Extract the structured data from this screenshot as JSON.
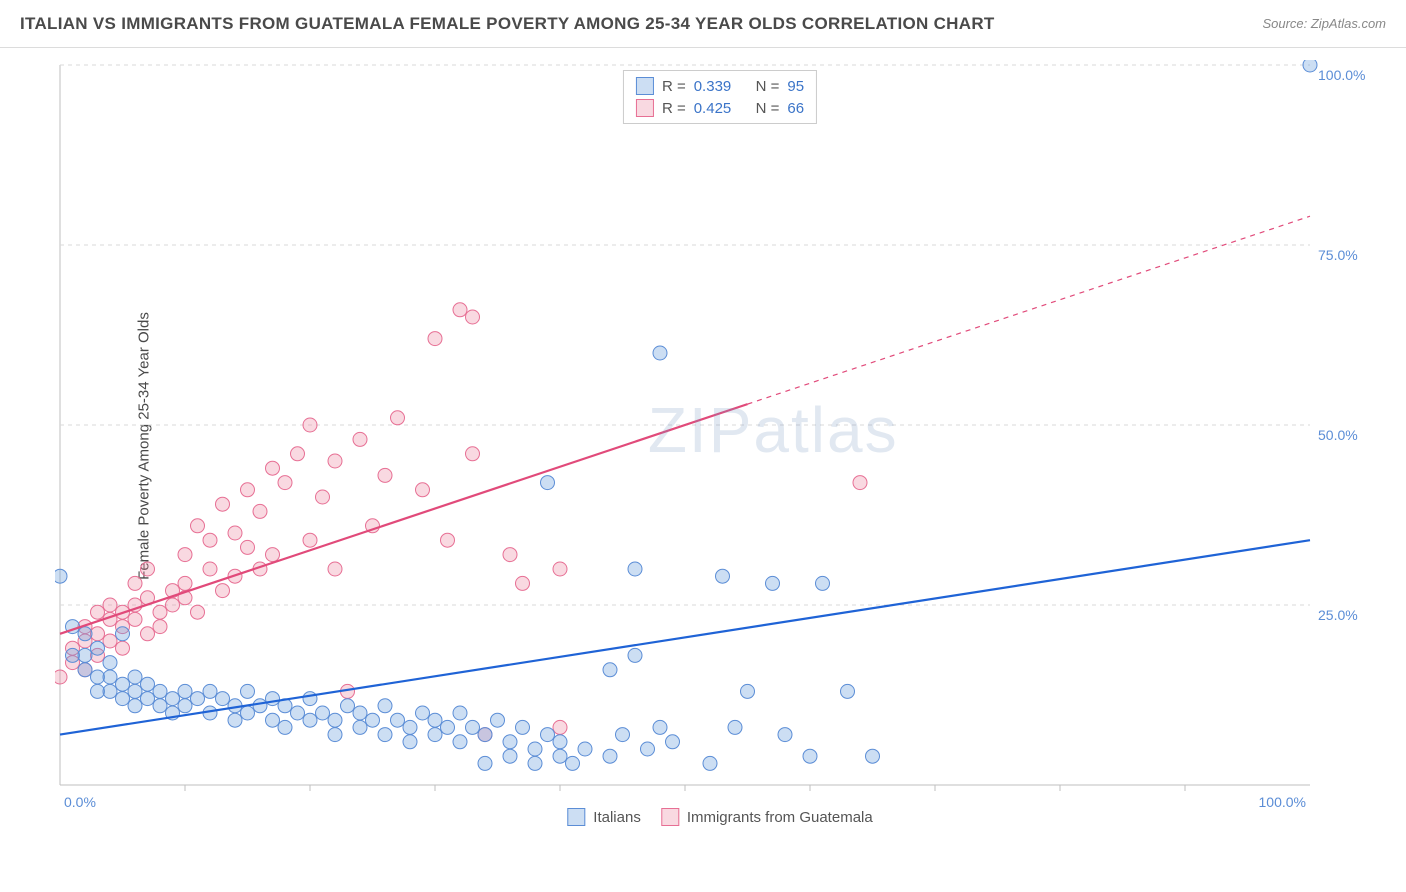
{
  "title": "ITALIAN VS IMMIGRANTS FROM GUATEMALA FEMALE POVERTY AMONG 25-34 YEAR OLDS CORRELATION CHART",
  "source": "Source: ZipAtlas.com",
  "ylabel": "Female Poverty Among 25-34 Year Olds",
  "watermark_bold": "ZIP",
  "watermark_thin": "atlas",
  "chart": {
    "type": "scatter-correlation",
    "xlim": [
      0,
      100
    ],
    "ylim": [
      0,
      100
    ],
    "x_ticks": [
      0,
      100
    ],
    "y_ticks": [
      25,
      50,
      75,
      100
    ],
    "x_tick_labels": [
      "0.0%",
      "100.0%"
    ],
    "y_tick_labels": [
      "25.0%",
      "50.0%",
      "75.0%",
      "100.0%"
    ],
    "grid_color": "#d8d8d8",
    "grid_dash": "4,4",
    "axis_line_color": "#bfbfbf",
    "tick_label_color": "#5b8dd6",
    "background_color": "#ffffff"
  },
  "series": {
    "italians": {
      "label": "Italians",
      "R": "0.339",
      "N": "95",
      "point_fill": "rgba(108,160,220,0.35)",
      "point_stroke": "#5b8dd6",
      "trend_stroke": "#1f63d6",
      "trend_width": 2.2,
      "trend_y_at_x0": 7,
      "trend_y_at_x100": 34,
      "points": [
        [
          0,
          29
        ],
        [
          1,
          22
        ],
        [
          1,
          18
        ],
        [
          2,
          21
        ],
        [
          2,
          18
        ],
        [
          2,
          16
        ],
        [
          3,
          19
        ],
        [
          3,
          15
        ],
        [
          3,
          13
        ],
        [
          4,
          17
        ],
        [
          4,
          15
        ],
        [
          4,
          13
        ],
        [
          5,
          21
        ],
        [
          5,
          14
        ],
        [
          5,
          12
        ],
        [
          6,
          15
        ],
        [
          6,
          13
        ],
        [
          6,
          11
        ],
        [
          7,
          14
        ],
        [
          7,
          12
        ],
        [
          8,
          13
        ],
        [
          8,
          11
        ],
        [
          9,
          12
        ],
        [
          9,
          10
        ],
        [
          10,
          13
        ],
        [
          10,
          11
        ],
        [
          11,
          12
        ],
        [
          12,
          13
        ],
        [
          12,
          10
        ],
        [
          13,
          12
        ],
        [
          14,
          11
        ],
        [
          14,
          9
        ],
        [
          15,
          13
        ],
        [
          15,
          10
        ],
        [
          16,
          11
        ],
        [
          17,
          12
        ],
        [
          17,
          9
        ],
        [
          18,
          11
        ],
        [
          18,
          8
        ],
        [
          19,
          10
        ],
        [
          20,
          12
        ],
        [
          20,
          9
        ],
        [
          21,
          10
        ],
        [
          22,
          9
        ],
        [
          22,
          7
        ],
        [
          23,
          11
        ],
        [
          24,
          10
        ],
        [
          24,
          8
        ],
        [
          25,
          9
        ],
        [
          26,
          11
        ],
        [
          26,
          7
        ],
        [
          27,
          9
        ],
        [
          28,
          8
        ],
        [
          28,
          6
        ],
        [
          29,
          10
        ],
        [
          30,
          9
        ],
        [
          30,
          7
        ],
        [
          31,
          8
        ],
        [
          32,
          10
        ],
        [
          32,
          6
        ],
        [
          33,
          8
        ],
        [
          34,
          7
        ],
        [
          34,
          3
        ],
        [
          35,
          9
        ],
        [
          36,
          6
        ],
        [
          36,
          4
        ],
        [
          37,
          8
        ],
        [
          38,
          5
        ],
        [
          38,
          3
        ],
        [
          39,
          7
        ],
        [
          40,
          6
        ],
        [
          40,
          4
        ],
        [
          41,
          3
        ],
        [
          42,
          5
        ],
        [
          44,
          4
        ],
        [
          44,
          16
        ],
        [
          45,
          7
        ],
        [
          46,
          30
        ],
        [
          47,
          5
        ],
        [
          48,
          8
        ],
        [
          49,
          6
        ],
        [
          52,
          3
        ],
        [
          53,
          29
        ],
        [
          54,
          8
        ],
        [
          55,
          13
        ],
        [
          57,
          28
        ],
        [
          58,
          7
        ],
        [
          60,
          4
        ],
        [
          61,
          28
        ],
        [
          63,
          13
        ],
        [
          65,
          4
        ],
        [
          48,
          60
        ],
        [
          39,
          42
        ],
        [
          46,
          18
        ],
        [
          100,
          100
        ]
      ]
    },
    "guatemala": {
      "label": "Immigrants from Guatemala",
      "R": "0.425",
      "N": "66",
      "point_fill": "rgba(235,130,155,0.30)",
      "point_stroke": "#e76f94",
      "trend_stroke": "#e14a7a",
      "trend_width": 2.2,
      "trend_y_at_x0": 21,
      "trend_y_at_x100": 79,
      "trend_dash_after_x": 55,
      "points": [
        [
          0,
          15
        ],
        [
          1,
          17
        ],
        [
          1,
          19
        ],
        [
          2,
          16
        ],
        [
          2,
          20
        ],
        [
          2,
          22
        ],
        [
          3,
          18
        ],
        [
          3,
          21
        ],
        [
          3,
          24
        ],
        [
          4,
          20
        ],
        [
          4,
          23
        ],
        [
          4,
          25
        ],
        [
          5,
          22
        ],
        [
          5,
          24
        ],
        [
          5,
          19
        ],
        [
          6,
          23
        ],
        [
          6,
          25
        ],
        [
          6,
          28
        ],
        [
          7,
          21
        ],
        [
          7,
          26
        ],
        [
          7,
          30
        ],
        [
          8,
          24
        ],
        [
          8,
          22
        ],
        [
          9,
          25
        ],
        [
          9,
          27
        ],
        [
          10,
          26
        ],
        [
          10,
          28
        ],
        [
          10,
          32
        ],
        [
          11,
          36
        ],
        [
          11,
          24
        ],
        [
          12,
          30
        ],
        [
          12,
          34
        ],
        [
          13,
          39
        ],
        [
          13,
          27
        ],
        [
          14,
          35
        ],
        [
          14,
          29
        ],
        [
          15,
          41
        ],
        [
          15,
          33
        ],
        [
          16,
          38
        ],
        [
          16,
          30
        ],
        [
          17,
          44
        ],
        [
          17,
          32
        ],
        [
          18,
          42
        ],
        [
          19,
          46
        ],
        [
          20,
          50
        ],
        [
          20,
          34
        ],
        [
          21,
          40
        ],
        [
          22,
          45
        ],
        [
          22,
          30
        ],
        [
          23,
          13
        ],
        [
          24,
          48
        ],
        [
          25,
          36
        ],
        [
          26,
          43
        ],
        [
          27,
          51
        ],
        [
          29,
          41
        ],
        [
          30,
          62
        ],
        [
          31,
          34
        ],
        [
          32,
          66
        ],
        [
          33,
          46
        ],
        [
          33,
          65
        ],
        [
          34,
          7
        ],
        [
          36,
          32
        ],
        [
          37,
          28
        ],
        [
          40,
          8
        ],
        [
          40,
          30
        ],
        [
          64,
          42
        ]
      ]
    }
  },
  "legend_top": {
    "R_label": "R =",
    "N_label": "N ="
  }
}
